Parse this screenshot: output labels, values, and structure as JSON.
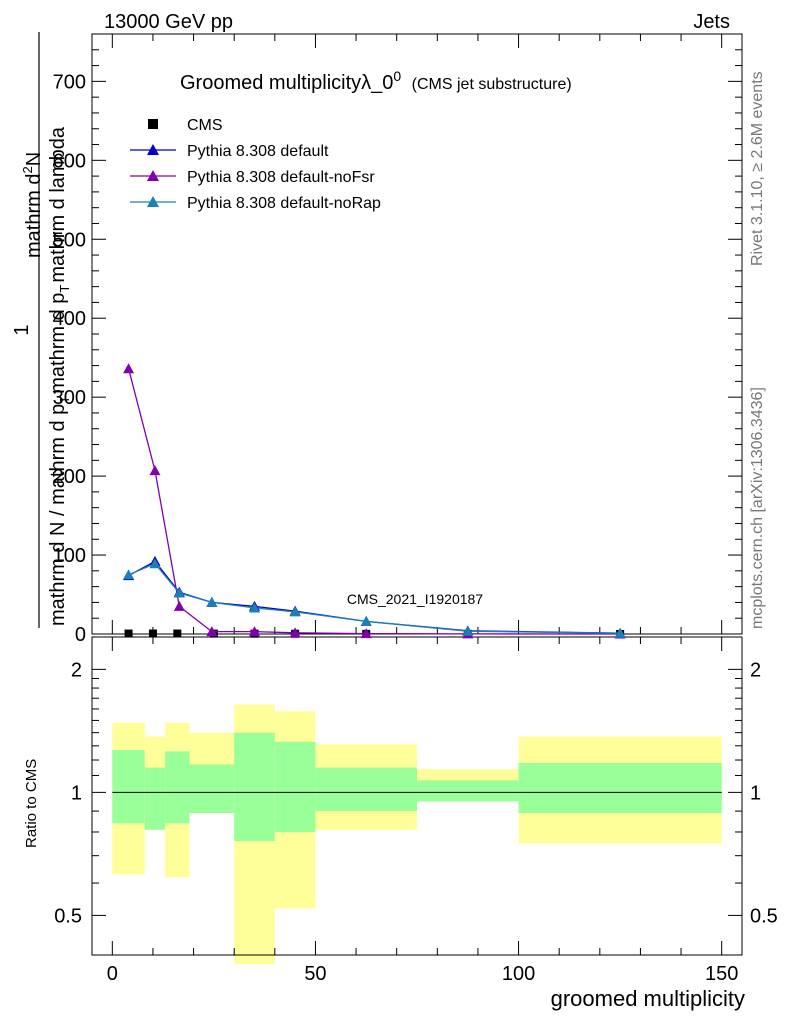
{
  "header": {
    "energy": "13000 GeV pp",
    "category": "Jets"
  },
  "side_text": {
    "rivet": "Rivet 3.1.10, ≥ 2.6M events",
    "source": "mcplots.cern.ch [arXiv:1306.3436]"
  },
  "chart_data": [
    {
      "type": "line",
      "title": "Groomed multiplicityλ_0",
      "title_sup": "0",
      "subtitle": "(CMS jet substructure)",
      "analysis_id": "CMS_2021_I1920187",
      "ylabel_numerator": "1",
      "ylabel_denominator": "mathrm d N / mathrm d p_T mathrm d p_T mathrm d lambda",
      "ylabel_den_parts": [
        "mathrm d N / mathrm d p",
        "T",
        "mathrm d p",
        "T",
        "mathrm d lambda"
      ],
      "ylabel_right": "mathrm d N",
      "ylabel_right_parts": [
        "mathrm d",
        "2",
        "N"
      ],
      "xlim": [
        -5,
        155
      ],
      "ylim": [
        0,
        760
      ],
      "y_ticks": [
        0,
        100,
        200,
        300,
        400,
        500,
        600,
        700
      ],
      "x_ticks": [
        0,
        50,
        100,
        150
      ],
      "grid": false,
      "legend_position": "top-left",
      "series": [
        {
          "name": "CMS",
          "marker": "square",
          "color": "#000000",
          "x": [
            4,
            10,
            16,
            25,
            35,
            45,
            62.5,
            87.5,
            125
          ],
          "y": [
            0.6,
            0.6,
            0.6,
            0.5,
            0.4,
            0.3,
            0.2,
            0.1,
            0.05
          ]
        },
        {
          "name": "Pythia 8.308 default",
          "marker": "triangle",
          "color": "#0000c8",
          "x": [
            4,
            10.5,
            16.5,
            24.5,
            35,
            45,
            62.5,
            87.5,
            125
          ],
          "y": [
            74,
            92,
            53,
            40,
            35,
            29,
            16,
            4,
            1
          ]
        },
        {
          "name": "Pythia 8.308 default-noFsr",
          "marker": "triangle",
          "color": "#8000b0",
          "x": [
            4,
            10.5,
            16.5,
            24.5,
            35,
            45,
            62.5,
            87.5,
            125
          ],
          "y": [
            336,
            207,
            35,
            3,
            3,
            1.5,
            0.5,
            0.1,
            0
          ]
        },
        {
          "name": "Pythia 8.308 default-noRap",
          "marker": "triangle",
          "color": "#1a80b8",
          "x": [
            4,
            10.5,
            16.5,
            24.5,
            35,
            45,
            62.5,
            87.5,
            125
          ],
          "y": [
            75,
            89,
            52,
            40,
            33,
            28,
            16,
            3.5,
            1
          ]
        }
      ]
    },
    {
      "type": "area",
      "ylabel": "Ratio to CMS",
      "xlabel": "groomed multiplicity",
      "xlim": [
        -5,
        155
      ],
      "ylim": [
        0.4,
        2.4
      ],
      "log_y": true,
      "y_ticks": [
        0.5,
        1,
        2
      ],
      "x_ticks": [
        0,
        50,
        100,
        150
      ],
      "reference_line": 1,
      "bins": [
        {
          "lo": 0,
          "hi": 8,
          "inner": [
            0.84,
            1.27
          ],
          "outer": [
            0.63,
            1.48
          ]
        },
        {
          "lo": 8,
          "hi": 13,
          "inner": [
            0.81,
            1.15
          ],
          "outer": [
            0.81,
            1.37
          ]
        },
        {
          "lo": 13,
          "hi": 19,
          "inner": [
            0.84,
            1.26
          ],
          "outer": [
            0.62,
            1.48
          ]
        },
        {
          "lo": 19,
          "hi": 30,
          "inner": [
            0.89,
            1.17
          ],
          "outer": [
            0.89,
            1.4
          ]
        },
        {
          "lo": 30,
          "hi": 40,
          "inner": [
            0.76,
            1.4
          ],
          "outer": [
            0.38,
            1.64
          ]
        },
        {
          "lo": 40,
          "hi": 50,
          "inner": [
            0.8,
            1.33
          ],
          "outer": [
            0.52,
            1.58
          ]
        },
        {
          "lo": 50,
          "hi": 75,
          "inner": [
            0.9,
            1.15
          ],
          "outer": [
            0.81,
            1.31
          ]
        },
        {
          "lo": 75,
          "hi": 100,
          "inner": [
            0.95,
            1.07
          ],
          "outer": [
            0.95,
            1.14
          ]
        },
        {
          "lo": 100,
          "hi": 150,
          "inner": [
            0.89,
            1.18
          ],
          "outer": [
            0.75,
            1.37
          ]
        }
      ]
    }
  ]
}
